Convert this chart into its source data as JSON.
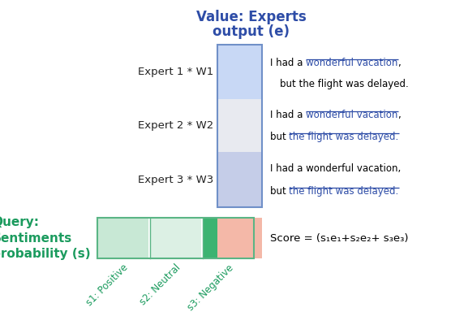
{
  "title_line1": "Value: Experts",
  "title_line2": "output (e)",
  "title_color": "#2E4DA7",
  "title_fontsize": 12,
  "expert_labels": [
    "Expert 1 * W1",
    "Expert 2 * W2",
    "Expert 3 * W3"
  ],
  "expert_label_fontsize": 9.5,
  "expert_box_colors": [
    "#C8D8F5",
    "#E8EAF0",
    "#C5CDE8"
  ],
  "expert_outline_color": "#7090C8",
  "query_label_color": "#1B9B5E",
  "query_label_fontsize": 11,
  "query_box_colors": [
    "#C8E8D5",
    "#DCF0E4",
    "#3CB371"
  ],
  "query_outline_color": "#5AB585",
  "score_box_color": "#F4B8A8",
  "score_text_color": "#000000",
  "score_text_fontsize": 9.5,
  "xtick_color": "#1B9B5E",
  "xtick_fontsize": 8.5,
  "ann_color_normal": "#000000",
  "ann_color_blue": "#2E4DA7",
  "ann_fontsize": 8.5,
  "background_color": "#FFFFFF",
  "figsize": [
    5.56,
    3.84
  ],
  "dpi": 100
}
